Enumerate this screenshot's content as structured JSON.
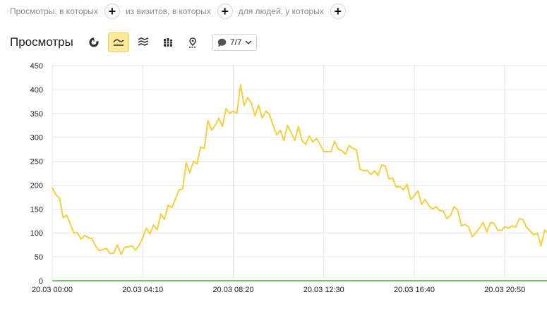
{
  "filters": [
    {
      "label": "Просмотры, в которых"
    },
    {
      "label": "из визитов, в которых"
    },
    {
      "label": "для людей, у которых"
    }
  ],
  "toolbar": {
    "title": "Просмотры",
    "icons": [
      "pie-chart-icon",
      "line-chart-icon",
      "area-chart-icon",
      "bar-chart-icon",
      "map-pin-icon"
    ],
    "active_icon": "line-chart-icon",
    "series_selector": {
      "value": "7/7",
      "icon": "speech-bubble-icon"
    }
  },
  "colors": {
    "series": "#f6cf3a",
    "baseline": "#7bc96f",
    "grid": "#e6e6e6",
    "active_tool": "#fde99c"
  },
  "chart_data": {
    "type": "line",
    "title": "",
    "xlabel": "",
    "ylabel": "",
    "ylim": [
      0,
      450
    ],
    "yticks": [
      0,
      50,
      100,
      150,
      200,
      250,
      300,
      350,
      400,
      450
    ],
    "xtick_labels": [
      "20.03 00:00",
      "20.03 04:10",
      "20.03 08:20",
      "20.03 12:30",
      "20.03 16:40",
      "20.03 20:50"
    ],
    "x_interval_minutes": 10,
    "grid": true,
    "series": [
      {
        "color": "#f6cf3a",
        "values": [
          195,
          180,
          173,
          132,
          137,
          118,
          100,
          100,
          87,
          95,
          90,
          88,
          72,
          63,
          65,
          68,
          57,
          58,
          75,
          55,
          70,
          71,
          73,
          64,
          74,
          90,
          110,
          98,
          117,
          107,
          140,
          128,
          158,
          153,
          170,
          190,
          192,
          247,
          226,
          250,
          245,
          280,
          277,
          335,
          315,
          325,
          340,
          323,
          360,
          350,
          355,
          350,
          410,
          367,
          383,
          372,
          345,
          368,
          340,
          355,
          348,
          325,
          305,
          315,
          293,
          325,
          310,
          293,
          323,
          293,
          285,
          303,
          290,
          298,
          285,
          270,
          270,
          270,
          292,
          275,
          272,
          265,
          283,
          277,
          274,
          233,
          230,
          231,
          222,
          230,
          220,
          242,
          240,
          213,
          215,
          196,
          197,
          190,
          202,
          170,
          178,
          188,
          160,
          170,
          157,
          150,
          155,
          147,
          146,
          130,
          137,
          155,
          148,
          115,
          118,
          113,
          92,
          100,
          110,
          122,
          102,
          122,
          120,
          106,
          105,
          113,
          110,
          115,
          112,
          130,
          128,
          112,
          104,
          96,
          100,
          73,
          106,
          100
        ]
      },
      {
        "color": "#7bc96f",
        "values": "all-zero"
      }
    ]
  }
}
